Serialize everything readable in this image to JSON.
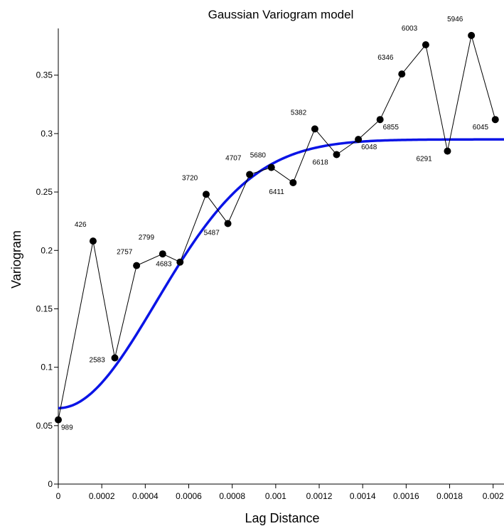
{
  "chart_data": {
    "type": "line",
    "title": "Gaussian Variogram model",
    "xlabel": "Lag Distance",
    "ylabel": "Variogram",
    "xlim": [
      0,
      0.00205
    ],
    "ylim": [
      0,
      0.39
    ],
    "x_ticks": [
      0,
      0.0002,
      0.0004,
      0.0006,
      0.0008,
      0.001,
      0.0012,
      0.0014,
      0.0016,
      0.0018,
      0.002
    ],
    "x_tick_labels": [
      "0",
      "0.0002",
      "0.0004",
      "0.0006",
      "0.0008",
      "0.001",
      "0.0012",
      "0.0014",
      "0.0016",
      "0.0018",
      "0.002"
    ],
    "y_ticks": [
      0,
      0.05,
      0.1,
      0.15,
      0.2,
      0.25,
      0.3,
      0.35
    ],
    "y_tick_labels": [
      "0",
      "0.05",
      "0.1",
      "0.15",
      "0.2",
      "0.25",
      "0.3",
      "0.35"
    ],
    "grid": false,
    "series": [
      {
        "type": "line-markers",
        "color": "#000000",
        "points": [
          {
            "x": 0.0,
            "y": 0.055,
            "label": "989"
          },
          {
            "x": 0.00016,
            "y": 0.208,
            "label": "426"
          },
          {
            "x": 0.00026,
            "y": 0.108,
            "label": "2583"
          },
          {
            "x": 0.00036,
            "y": 0.187,
            "label": "2757"
          },
          {
            "x": 0.00048,
            "y": 0.197,
            "label": "2799"
          },
          {
            "x": 0.00056,
            "y": 0.19,
            "label": "4683"
          },
          {
            "x": 0.00068,
            "y": 0.248,
            "label": "3720"
          },
          {
            "x": 0.00078,
            "y": 0.223,
            "label": "5487"
          },
          {
            "x": 0.00088,
            "y": 0.265,
            "label": "4707"
          },
          {
            "x": 0.00098,
            "y": 0.271,
            "label": "5680"
          },
          {
            "x": 0.00108,
            "y": 0.258,
            "label": "6411"
          },
          {
            "x": 0.00118,
            "y": 0.304,
            "label": "5382"
          },
          {
            "x": 0.00128,
            "y": 0.282,
            "label": "6618"
          },
          {
            "x": 0.00138,
            "y": 0.295,
            "label": "6048"
          },
          {
            "x": 0.00148,
            "y": 0.312,
            "label": "6855"
          },
          {
            "x": 0.00158,
            "y": 0.351,
            "label": "6346"
          },
          {
            "x": 0.00169,
            "y": 0.376,
            "label": "6003"
          },
          {
            "x": 0.00179,
            "y": 0.285,
            "label": "6291"
          },
          {
            "x": 0.0019,
            "y": 0.384,
            "label": "5946"
          },
          {
            "x": 0.00201,
            "y": 0.312,
            "label": "6045"
          }
        ]
      },
      {
        "type": "model-curve",
        "model": "gaussian",
        "color": "#0000e0",
        "nugget": 0.065,
        "sill": 0.295,
        "range": 0.0011
      }
    ]
  }
}
